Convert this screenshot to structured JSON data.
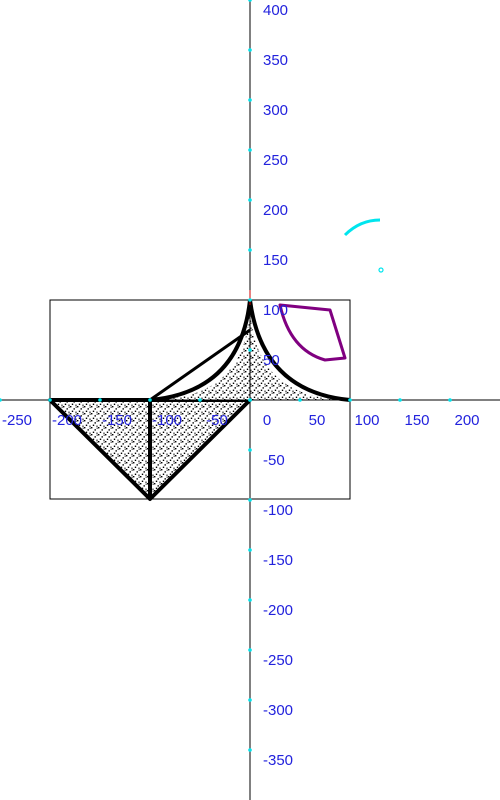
{
  "canvas": {
    "x_axis": {
      "ticks": [
        -250,
        -200,
        -150,
        -100,
        -50,
        0,
        50,
        100,
        150,
        200
      ]
    },
    "y_axis": {
      "ticks": [
        400,
        350,
        300,
        250,
        200,
        150,
        100,
        50,
        0,
        -50,
        -100,
        -150,
        -200,
        -250,
        -300,
        -350
      ]
    }
  },
  "colors": {
    "axis": "#000000",
    "tick_label": "#2222dd",
    "tick_marker": "#00e5ee",
    "shape_outline": "#000000",
    "sector": "#800080",
    "arc": "#00e5ee"
  }
}
